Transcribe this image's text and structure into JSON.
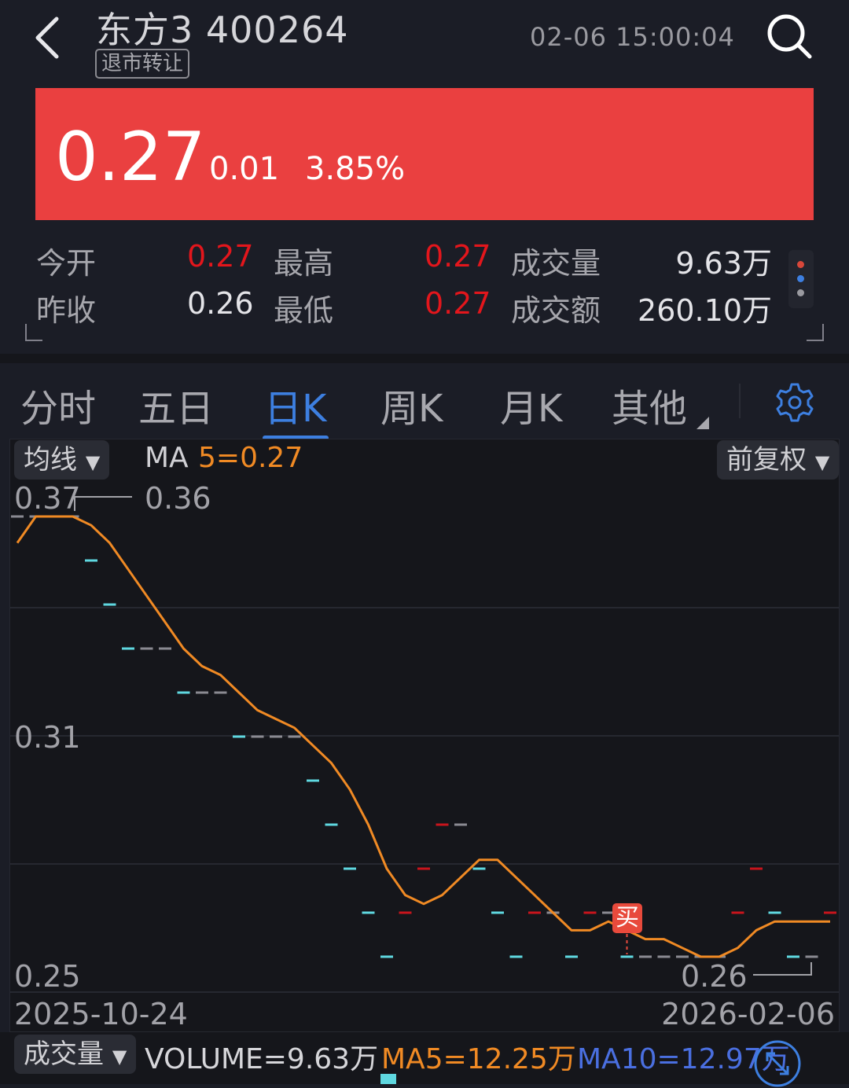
{
  "header": {
    "title": "东方3 400264",
    "tag": "退市转让",
    "time": "02-06 15:00:04",
    "back_icon": "chevron-left-icon",
    "search_icon": "search-icon"
  },
  "quote": {
    "price": "0.27",
    "change": "0.01",
    "percent": "3.85%",
    "color": "#ea4040"
  },
  "stats": {
    "open_label": "今开",
    "open": "0.27",
    "high_label": "最高",
    "high": "0.27",
    "volume_label": "成交量",
    "volume": "9.63万",
    "prev_label": "昨收",
    "prev": "0.26",
    "low_label": "最低",
    "low": "0.27",
    "amount_label": "成交额",
    "amount": "260.10万"
  },
  "tabs": [
    {
      "label": "分时"
    },
    {
      "label": "五日"
    },
    {
      "label": "日K",
      "active": true
    },
    {
      "label": "周K"
    },
    {
      "label": "月K"
    },
    {
      "label": "其他"
    }
  ],
  "chart_toolbar": {
    "indicator": "均线",
    "ma_label": "MA",
    "ma5": "5=0.27",
    "adjust": "前复权"
  },
  "chart_data": {
    "type": "candlestick",
    "y_ticks": [
      "0.37",
      "0.31",
      "0.25"
    ],
    "x_start": "2025-10-24",
    "x_end": "2026-02-06",
    "high_marker": "0.36",
    "low_marker": "0.26",
    "buy_marker": "买",
    "closes": [
      0.36,
      0.36,
      0.36,
      0.36,
      0.35,
      0.34,
      0.33,
      0.33,
      0.33,
      0.32,
      0.32,
      0.32,
      0.31,
      0.31,
      0.31,
      0.31,
      0.3,
      0.29,
      0.28,
      0.27,
      0.26,
      0.27,
      0.28,
      0.29,
      0.29,
      0.28,
      0.27,
      0.26,
      0.27,
      0.27,
      0.26,
      0.27,
      0.27,
      0.26,
      0.26,
      0.26,
      0.26,
      0.26,
      0.26,
      0.27,
      0.28,
      0.27,
      0.26,
      0.26,
      0.27
    ],
    "direction": [
      "flat",
      "flat",
      "flat",
      "flat",
      "down",
      "down",
      "down",
      "flat",
      "flat",
      "down",
      "flat",
      "flat",
      "down",
      "flat",
      "flat",
      "flat",
      "down",
      "down",
      "down",
      "down",
      "down",
      "up",
      "up",
      "up",
      "flat",
      "down",
      "down",
      "down",
      "up",
      "flat",
      "down",
      "up",
      "flat",
      "down",
      "flat",
      "flat",
      "flat",
      "flat",
      "flat",
      "up",
      "up",
      "down",
      "down",
      "flat",
      "up"
    ],
    "ma5": [
      0.354,
      0.36,
      0.36,
      0.36,
      0.358,
      0.354,
      0.348,
      0.342,
      0.336,
      0.33,
      0.326,
      0.324,
      0.32,
      0.316,
      0.314,
      0.312,
      0.308,
      0.304,
      0.298,
      0.29,
      0.28,
      0.274,
      0.272,
      0.274,
      0.278,
      0.282,
      0.282,
      0.278,
      0.274,
      0.27,
      0.266,
      0.266,
      0.268,
      0.266,
      0.264,
      0.264,
      0.262,
      0.26,
      0.26,
      0.262,
      0.266,
      0.268,
      0.268,
      0.268,
      0.268
    ],
    "buy_index": 33,
    "colors": {
      "up": "#c8141c",
      "down": "#5fd8e0",
      "flat": "#8a8a92",
      "ma5": "#f08a24"
    }
  },
  "volume": {
    "selector": "成交量",
    "volume": "VOLUME=9.63万",
    "ma5": "MA5=12.25万",
    "ma10": "MA10=12.97万"
  }
}
